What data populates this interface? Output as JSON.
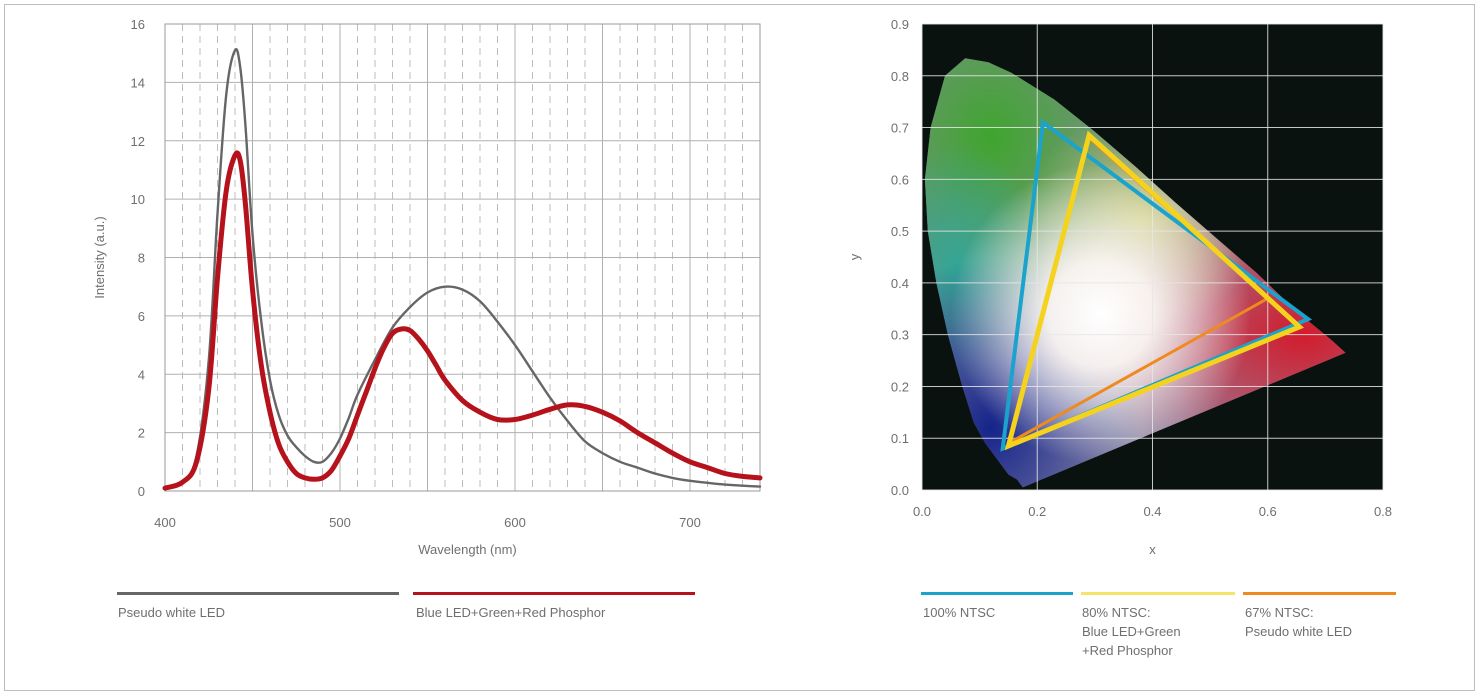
{
  "chart_data": [
    {
      "type": "line",
      "xlabel": "Wavelength (nm)",
      "ylabel": "Intensity (a.u.)",
      "xlim": [
        400,
        740
      ],
      "ylim": [
        0,
        16
      ],
      "xticks": [
        "400",
        "500",
        "600",
        "700"
      ],
      "xtick_values": [
        400,
        500,
        600,
        700
      ],
      "yticks": [
        "0",
        "2",
        "4",
        "6",
        "8",
        "10",
        "12",
        "14",
        "16"
      ],
      "ytick_values": [
        0,
        2,
        4,
        6,
        8,
        10,
        12,
        14,
        16
      ],
      "grid": true,
      "legend": "bottom",
      "series": [
        {
          "name": "Pseudo white LED",
          "color": "#666666",
          "x": [
            400,
            410,
            418,
            425,
            430,
            435,
            440,
            443,
            446,
            450,
            455,
            460,
            465,
            470,
            475,
            480,
            485,
            490,
            495,
            500,
            505,
            510,
            520,
            530,
            540,
            550,
            560,
            570,
            580,
            590,
            600,
            610,
            620,
            630,
            640,
            650,
            660,
            670,
            680,
            690,
            700,
            710,
            720,
            730,
            740
          ],
          "y": [
            0.1,
            0.3,
            1.2,
            4.5,
            9.5,
            13.6,
            15.1,
            14.5,
            12.5,
            8.8,
            5.8,
            3.8,
            2.6,
            1.9,
            1.5,
            1.2,
            1.0,
            1.0,
            1.3,
            1.8,
            2.5,
            3.3,
            4.5,
            5.6,
            6.3,
            6.8,
            7.0,
            6.9,
            6.5,
            5.8,
            5.0,
            4.1,
            3.2,
            2.4,
            1.7,
            1.3,
            1.0,
            0.8,
            0.6,
            0.45,
            0.35,
            0.28,
            0.22,
            0.18,
            0.15
          ]
        },
        {
          "name": "Blue LED+Green+Red Phosphor",
          "color": "#b5121b",
          "x": [
            400,
            410,
            418,
            425,
            430,
            435,
            440,
            443,
            446,
            450,
            455,
            460,
            465,
            470,
            475,
            480,
            485,
            490,
            495,
            500,
            505,
            510,
            515,
            520,
            525,
            530,
            535,
            540,
            545,
            550,
            555,
            560,
            570,
            580,
            590,
            600,
            610,
            620,
            630,
            640,
            650,
            660,
            670,
            680,
            690,
            700,
            710,
            720,
            730,
            740
          ],
          "y": [
            0.1,
            0.3,
            1.0,
            3.5,
            7.3,
            10.3,
            11.5,
            11.3,
            9.8,
            6.9,
            4.3,
            2.7,
            1.6,
            1.0,
            0.6,
            0.45,
            0.4,
            0.45,
            0.7,
            1.2,
            1.8,
            2.6,
            3.4,
            4.2,
            4.9,
            5.4,
            5.55,
            5.5,
            5.2,
            4.8,
            4.3,
            3.8,
            3.1,
            2.7,
            2.45,
            2.45,
            2.6,
            2.8,
            2.95,
            2.9,
            2.7,
            2.4,
            2.0,
            1.65,
            1.3,
            1.0,
            0.8,
            0.6,
            0.5,
            0.45
          ]
        }
      ]
    },
    {
      "type": "scatter",
      "xlabel": "x",
      "ylabel": "y",
      "xlim": [
        0.0,
        0.8
      ],
      "ylim": [
        0.0,
        0.9
      ],
      "xticks": [
        "0.0",
        "0.2",
        "0.4",
        "0.6",
        "0.8"
      ],
      "xtick_values": [
        0.0,
        0.2,
        0.4,
        0.6,
        0.8
      ],
      "yticks": [
        "0.0",
        "0.1",
        "0.2",
        "0.3",
        "0.4",
        "0.5",
        "0.6",
        "0.7",
        "0.8",
        "0.9"
      ],
      "ytick_values": [
        0.0,
        0.1,
        0.2,
        0.3,
        0.4,
        0.5,
        0.6,
        0.7,
        0.8,
        0.9
      ],
      "grid": true,
      "legend": "bottom",
      "background": "#0a1210",
      "spectral_locus": [
        [
          0.175,
          0.005
        ],
        [
          0.165,
          0.02
        ],
        [
          0.15,
          0.03
        ],
        [
          0.13,
          0.06
        ],
        [
          0.11,
          0.09
        ],
        [
          0.09,
          0.13
        ],
        [
          0.07,
          0.2
        ],
        [
          0.045,
          0.3
        ],
        [
          0.025,
          0.4
        ],
        [
          0.01,
          0.5
        ],
        [
          0.005,
          0.6
        ],
        [
          0.015,
          0.7
        ],
        [
          0.04,
          0.8
        ],
        [
          0.075,
          0.834
        ],
        [
          0.115,
          0.826
        ],
        [
          0.155,
          0.806
        ],
        [
          0.23,
          0.754
        ],
        [
          0.3,
          0.692
        ],
        [
          0.37,
          0.625
        ],
        [
          0.44,
          0.555
        ],
        [
          0.51,
          0.487
        ],
        [
          0.58,
          0.42
        ],
        [
          0.65,
          0.345
        ],
        [
          0.71,
          0.29
        ],
        [
          0.735,
          0.265
        ]
      ],
      "series": [
        {
          "name": "100% NTSC",
          "color": "#1aa3cc",
          "points": [
            [
              0.21,
              0.71
            ],
            [
              0.67,
              0.33
            ],
            [
              0.14,
              0.08
            ]
          ]
        },
        {
          "name": "80% NTSC:\nBlue LED+Green\n+Red Phosphor",
          "color": "#f5d31c",
          "points": [
            [
              0.29,
              0.685
            ],
            [
              0.655,
              0.315
            ],
            [
              0.15,
              0.085
            ]
          ]
        },
        {
          "name": "67% NTSC:\nPseudo white LED",
          "color": "#ee8a1f",
          "points": [
            [
              0.29,
              0.68
            ],
            [
              0.6,
              0.37
            ],
            [
              0.15,
              0.09
            ]
          ]
        }
      ]
    }
  ]
}
